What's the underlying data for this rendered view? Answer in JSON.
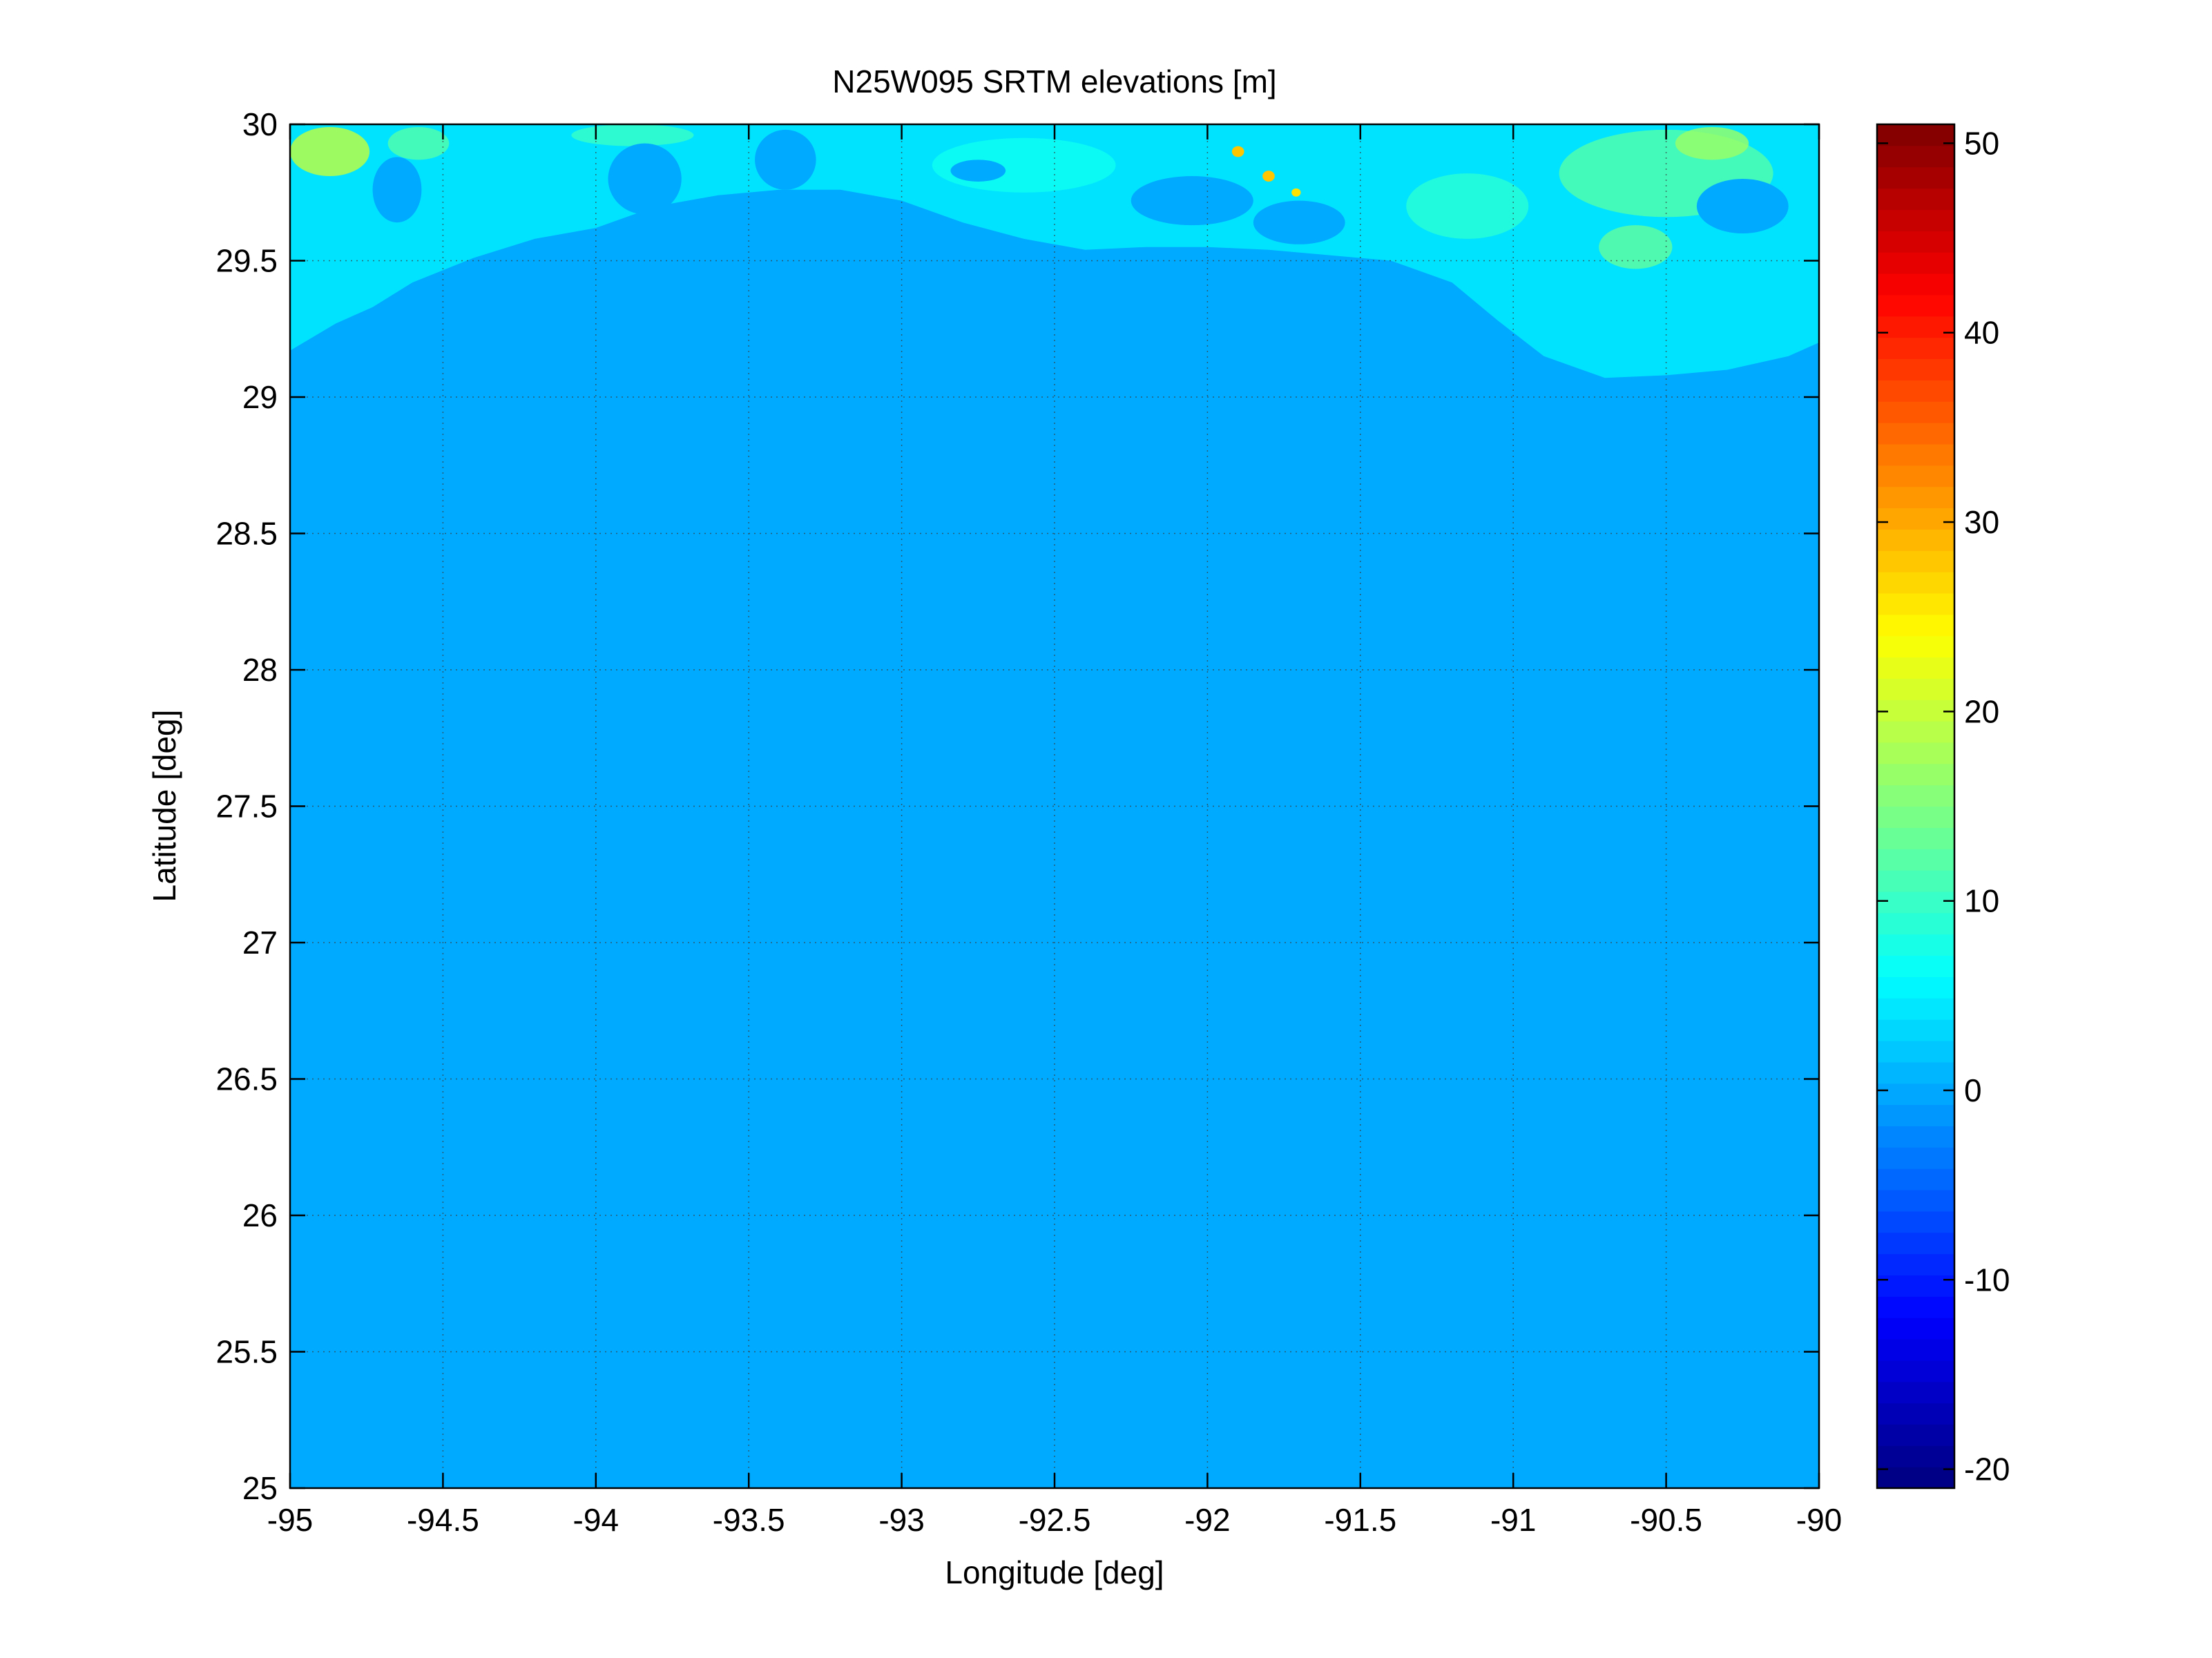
{
  "chart_data": {
    "type": "heatmap",
    "title": "N25W095 SRTM elevations [m]",
    "xlabel": "Longitude [deg]",
    "ylabel": "Latitude [deg]",
    "xlim": [
      -95,
      -90
    ],
    "ylim": [
      25,
      30
    ],
    "xticks": [
      -95,
      -94.5,
      -94,
      -93.5,
      -93,
      -92.5,
      -92,
      -91.5,
      -91,
      -90.5,
      -90
    ],
    "yticks": [
      25,
      25.5,
      26,
      26.5,
      27,
      27.5,
      28,
      28.5,
      29,
      29.5,
      30
    ],
    "grid": true,
    "colormap": "jet",
    "colorbar": {
      "clim": [
        -21,
        51
      ],
      "ticks": [
        -20,
        -10,
        0,
        10,
        20,
        30,
        40,
        50
      ],
      "tick_labels": [
        "-20",
        "-10",
        "0",
        "10",
        "20",
        "30",
        "40",
        "50"
      ]
    },
    "background_value_m": 0,
    "background_color": "#00aaff",
    "coastline_polygon": [
      [
        -95,
        29.17
      ],
      [
        -94.85,
        29.27
      ],
      [
        -94.73,
        29.33
      ],
      [
        -94.6,
        29.42
      ],
      [
        -94.4,
        29.51
      ],
      [
        -94.2,
        29.58
      ],
      [
        -94.0,
        29.62
      ],
      [
        -93.8,
        29.7
      ],
      [
        -93.6,
        29.74
      ],
      [
        -93.4,
        29.76
      ],
      [
        -93.2,
        29.76
      ],
      [
        -93.0,
        29.72
      ],
      [
        -92.8,
        29.64
      ],
      [
        -92.6,
        29.58
      ],
      [
        -92.4,
        29.54
      ],
      [
        -92.2,
        29.55
      ],
      [
        -92.0,
        29.55
      ],
      [
        -91.8,
        29.54
      ],
      [
        -91.6,
        29.52
      ],
      [
        -91.4,
        29.5
      ],
      [
        -91.2,
        29.42
      ],
      [
        -91.05,
        29.28
      ],
      [
        -90.9,
        29.15
      ],
      [
        -90.7,
        29.07
      ],
      [
        -90.5,
        29.08
      ],
      [
        -90.3,
        29.1
      ],
      [
        -90.1,
        29.15
      ],
      [
        -90.0,
        29.2
      ],
      [
        -90,
        30
      ],
      [
        -95,
        30
      ]
    ],
    "highland_patches": [
      {
        "lon": -94.87,
        "lat": 29.9,
        "rx": 0.13,
        "ry": 0.09,
        "value_m": 20
      },
      {
        "lon": -94.58,
        "lat": 29.93,
        "rx": 0.1,
        "ry": 0.06,
        "value_m": 12
      },
      {
        "lon": -93.88,
        "lat": 29.96,
        "rx": 0.2,
        "ry": 0.04,
        "value_m": 10
      },
      {
        "lon": -90.5,
        "lat": 29.82,
        "rx": 0.35,
        "ry": 0.16,
        "value_m": 12
      },
      {
        "lon": -90.35,
        "lat": 29.93,
        "rx": 0.12,
        "ry": 0.06,
        "value_m": 17
      },
      {
        "lon": -91.15,
        "lat": 29.7,
        "rx": 0.2,
        "ry": 0.12,
        "value_m": 9
      },
      {
        "lon": -90.6,
        "lat": 29.55,
        "rx": 0.12,
        "ry": 0.08,
        "value_m": 13
      },
      {
        "lon": -92.6,
        "lat": 29.85,
        "rx": 0.3,
        "ry": 0.1,
        "value_m": 7
      },
      {
        "lon": -91.9,
        "lat": 29.9,
        "rx": 0.02,
        "ry": 0.02,
        "value_m": 28
      },
      {
        "lon": -91.8,
        "lat": 29.81,
        "rx": 0.02,
        "ry": 0.02,
        "value_m": 28
      },
      {
        "lon": -91.71,
        "lat": 29.75,
        "rx": 0.015,
        "ry": 0.015,
        "value_m": 26
      }
    ],
    "lakes": [
      {
        "lon": -94.65,
        "lat": 29.76,
        "rx": 0.08,
        "ry": 0.12
      },
      {
        "lon": -93.84,
        "lat": 29.8,
        "rx": 0.12,
        "ry": 0.13
      },
      {
        "lon": -93.38,
        "lat": 29.87,
        "rx": 0.1,
        "ry": 0.11
      },
      {
        "lon": -92.75,
        "lat": 29.83,
        "rx": 0.09,
        "ry": 0.04
      },
      {
        "lon": -92.05,
        "lat": 29.72,
        "rx": 0.2,
        "ry": 0.09
      },
      {
        "lon": -91.7,
        "lat": 29.64,
        "rx": 0.15,
        "ry": 0.08
      },
      {
        "lon": -90.25,
        "lat": 29.7,
        "rx": 0.15,
        "ry": 0.1
      }
    ]
  }
}
